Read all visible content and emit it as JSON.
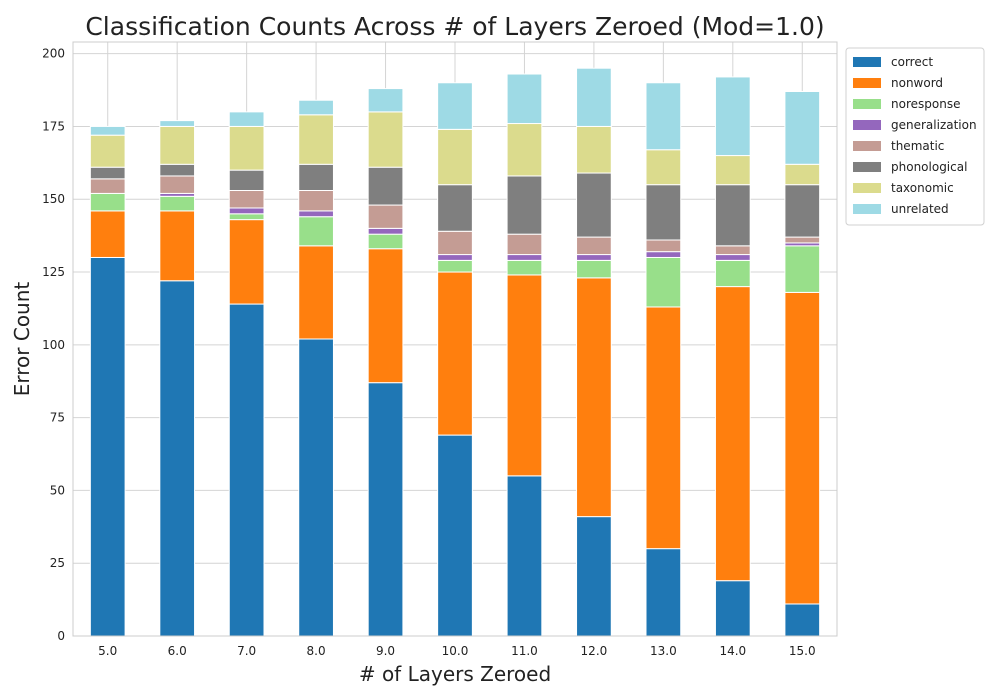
{
  "chart_data": {
    "type": "bar",
    "stacked": true,
    "title": "Classification Counts Across # of Layers Zeroed (Mod=1.0)",
    "xlabel": "# of Layers Zeroed",
    "ylabel": "Error Count",
    "categories": [
      "5.0",
      "6.0",
      "7.0",
      "8.0",
      "9.0",
      "10.0",
      "11.0",
      "12.0",
      "13.0",
      "14.0",
      "15.0"
    ],
    "ylim": [
      0,
      204
    ],
    "yticks": [
      0,
      25,
      50,
      75,
      100,
      125,
      150,
      175,
      200
    ],
    "grid": true,
    "legend_position": "outside-top-right",
    "series": [
      {
        "name": "correct",
        "color": "#1f77b4",
        "values": [
          130,
          122,
          114,
          102,
          87,
          69,
          55,
          41,
          30,
          19,
          11
        ]
      },
      {
        "name": "nonword",
        "color": "#ff7f0e",
        "values": [
          16,
          24,
          29,
          32,
          46,
          56,
          69,
          82,
          83,
          101,
          107
        ]
      },
      {
        "name": "noresponse",
        "color": "#98df8a",
        "values": [
          6,
          5,
          2,
          10,
          5,
          4,
          5,
          6,
          17,
          9,
          16
        ]
      },
      {
        "name": "generalization",
        "color": "#9467bd",
        "values": [
          0,
          1,
          2,
          2,
          2,
          2,
          2,
          2,
          2,
          2,
          1
        ]
      },
      {
        "name": "thematic",
        "color": "#c49c94",
        "values": [
          5,
          6,
          6,
          7,
          8,
          8,
          7,
          6,
          4,
          3,
          2
        ]
      },
      {
        "name": "phonological",
        "color": "#7f7f7f",
        "values": [
          4,
          4,
          7,
          9,
          13,
          16,
          20,
          22,
          19,
          21,
          18
        ]
      },
      {
        "name": "taxonomic",
        "color": "#dbdb8d",
        "values": [
          11,
          13,
          15,
          17,
          19,
          19,
          18,
          16,
          12,
          10,
          7
        ]
      },
      {
        "name": "unrelated",
        "color": "#9edae5",
        "values": [
          3,
          2,
          5,
          5,
          8,
          16,
          17,
          20,
          23,
          27,
          25
        ]
      }
    ]
  }
}
